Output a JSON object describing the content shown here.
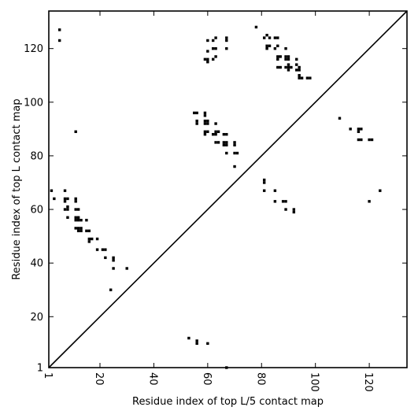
{
  "chart_data": {
    "type": "scatter",
    "title": "",
    "xlabel": "Residue index of top L/5 contact map",
    "ylabel": "Residue index of top L contact map",
    "xlim": [
      1,
      134
    ],
    "ylim": [
      1,
      134
    ],
    "x_ticks": [
      1,
      20,
      40,
      60,
      80,
      100,
      120
    ],
    "y_ticks": [
      1,
      20,
      40,
      60,
      80,
      100,
      120
    ],
    "tick_label_rotation_x": 90,
    "diagonal_line": true,
    "marker": "square",
    "color": "#000000",
    "grid": false,
    "upper_triangle_points": [
      [
        5,
        127
      ],
      [
        5,
        123
      ],
      [
        60,
        123
      ],
      [
        60,
        119
      ],
      [
        60,
        116
      ],
      [
        59,
        116
      ],
      [
        60,
        115
      ],
      [
        63,
        124
      ],
      [
        62,
        123
      ],
      [
        63,
        120
      ],
      [
        62,
        120
      ],
      [
        63,
        117
      ],
      [
        62,
        116
      ],
      [
        67,
        124
      ],
      [
        67,
        123
      ],
      [
        67,
        120
      ],
      [
        78,
        128
      ],
      [
        82,
        125
      ],
      [
        81,
        124
      ],
      [
        83,
        124
      ],
      [
        85,
        124
      ],
      [
        86,
        124
      ],
      [
        82,
        121
      ],
      [
        83,
        121
      ],
      [
        82,
        120
      ],
      [
        85,
        120
      ],
      [
        86,
        121
      ],
      [
        89,
        120
      ],
      [
        86,
        117
      ],
      [
        86,
        116
      ],
      [
        87,
        117
      ],
      [
        89,
        117
      ],
      [
        90,
        117
      ],
      [
        89,
        116
      ],
      [
        90,
        116
      ],
      [
        93,
        116
      ],
      [
        86,
        113
      ],
      [
        87,
        113
      ],
      [
        89,
        113
      ],
      [
        90,
        114
      ],
      [
        90,
        113
      ],
      [
        90,
        112
      ],
      [
        91,
        113
      ],
      [
        93,
        114
      ],
      [
        94,
        113
      ],
      [
        93,
        112
      ],
      [
        94,
        112
      ],
      [
        94,
        110
      ],
      [
        95,
        109
      ],
      [
        94,
        109
      ],
      [
        97,
        109
      ],
      [
        98,
        109
      ],
      [
        55,
        96
      ],
      [
        56,
        96
      ],
      [
        59,
        96
      ],
      [
        59,
        95
      ],
      [
        56,
        93
      ],
      [
        56,
        92
      ],
      [
        59,
        93
      ],
      [
        60,
        93
      ],
      [
        59,
        92
      ],
      [
        60,
        92
      ],
      [
        63,
        92
      ],
      [
        59,
        89
      ],
      [
        60,
        89
      ],
      [
        59,
        88
      ],
      [
        62,
        88
      ],
      [
        63,
        89
      ],
      [
        64,
        89
      ],
      [
        63,
        88
      ],
      [
        66,
        88
      ],
      [
        67,
        88
      ],
      [
        63,
        85
      ],
      [
        64,
        85
      ],
      [
        66,
        85
      ],
      [
        67,
        85
      ],
      [
        66,
        84
      ],
      [
        67,
        84
      ],
      [
        70,
        85
      ],
      [
        70,
        84
      ],
      [
        70,
        81
      ],
      [
        71,
        81
      ],
      [
        67,
        81
      ],
      [
        70,
        76
      ],
      [
        109,
        94
      ],
      [
        113,
        90
      ],
      [
        116,
        90
      ],
      [
        117,
        90
      ],
      [
        116,
        89
      ],
      [
        116,
        86
      ],
      [
        117,
        86
      ],
      [
        120,
        86
      ],
      [
        121,
        86
      ]
    ],
    "lower_triangle_points": [
      [
        11,
        89
      ],
      [
        2,
        67
      ],
      [
        7,
        67
      ],
      [
        3,
        64
      ],
      [
        7,
        64
      ],
      [
        8,
        64
      ],
      [
        7,
        63
      ],
      [
        11,
        64
      ],
      [
        11,
        63
      ],
      [
        7,
        60
      ],
      [
        8,
        60
      ],
      [
        8,
        61
      ],
      [
        11,
        60
      ],
      [
        12,
        60
      ],
      [
        8,
        57
      ],
      [
        11,
        57
      ],
      [
        12,
        57
      ],
      [
        11,
        56
      ],
      [
        12,
        56
      ],
      [
        13,
        56
      ],
      [
        15,
        56
      ],
      [
        11,
        53
      ],
      [
        12,
        53
      ],
      [
        13,
        53
      ],
      [
        12,
        52
      ],
      [
        13,
        52
      ],
      [
        15,
        52
      ],
      [
        16,
        52
      ],
      [
        16,
        49
      ],
      [
        17,
        49
      ],
      [
        19,
        49
      ],
      [
        16,
        48
      ],
      [
        19,
        45
      ],
      [
        21,
        45
      ],
      [
        22,
        45
      ],
      [
        22,
        42
      ],
      [
        25,
        42
      ],
      [
        25,
        41
      ],
      [
        25,
        38
      ],
      [
        30,
        38
      ],
      [
        24,
        30
      ],
      [
        81,
        71
      ],
      [
        81,
        70
      ],
      [
        81,
        67
      ],
      [
        85,
        67
      ],
      [
        85,
        63
      ],
      [
        88,
        63
      ],
      [
        89,
        63
      ],
      [
        89,
        60
      ],
      [
        92,
        60
      ],
      [
        92,
        59
      ],
      [
        120,
        63
      ],
      [
        124,
        67
      ],
      [
        53,
        12
      ],
      [
        56,
        11
      ],
      [
        56,
        10
      ],
      [
        60,
        10
      ],
      [
        67,
        1
      ]
    ]
  }
}
